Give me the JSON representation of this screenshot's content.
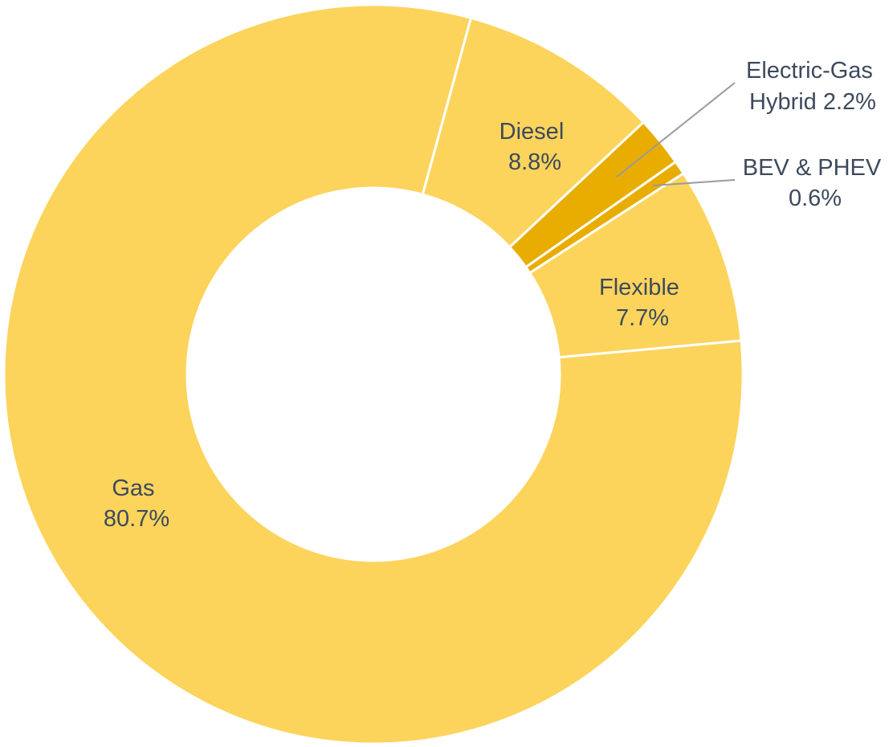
{
  "chart_data": {
    "type": "pie",
    "donut": true,
    "slices": [
      {
        "label": "Diesel",
        "value": 8.8,
        "value_text": "8.8%",
        "color": "#fcd45c"
      },
      {
        "label": "Electric-Gas Hybrid",
        "value": 2.2,
        "value_text": "2.2%",
        "color": "#e8ad00",
        "label_inline": true,
        "leader_line": true
      },
      {
        "label": "BEV & PHEV",
        "value": 0.6,
        "value_text": "0.6%",
        "color": "#e8ad00",
        "leader_line": true
      },
      {
        "label": "Flexible",
        "value": 7.7,
        "value_text": "7.7%",
        "color": "#fcd45c"
      },
      {
        "label": "Gas",
        "value": 80.7,
        "value_text": "80.7%",
        "color": "#fcd45c"
      }
    ],
    "legend": "none",
    "colors": {
      "label_text": "#3d4a5c",
      "separator": "#ffffff",
      "leader_line": "#9a9a9a"
    }
  }
}
